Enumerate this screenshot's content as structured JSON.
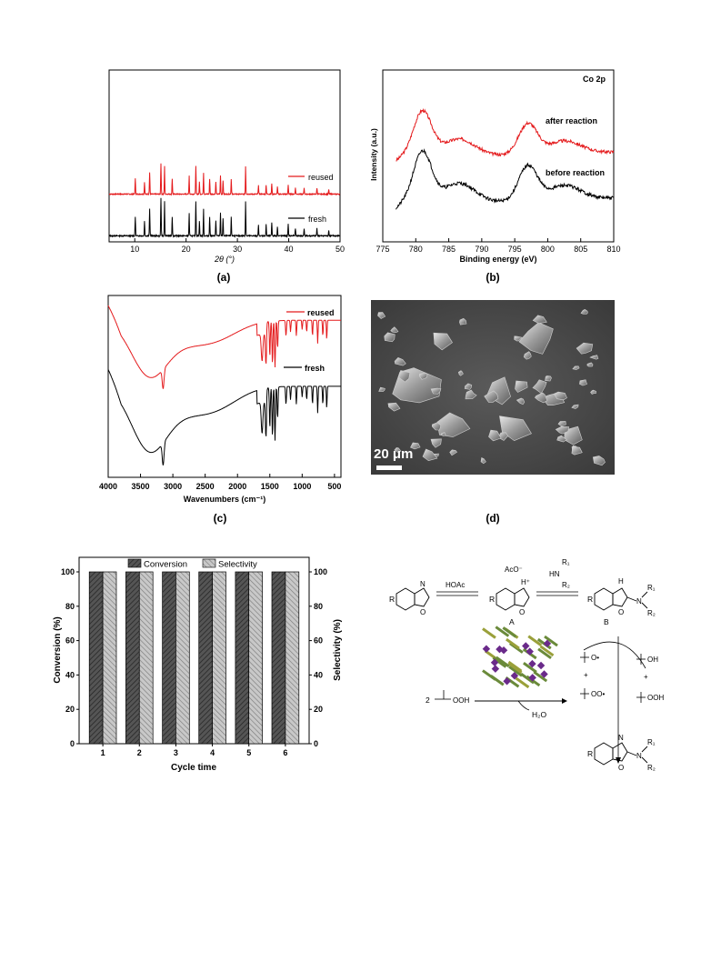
{
  "panels": {
    "a": {
      "caption": "(a)",
      "xlabel": "2θ (°)",
      "xlim": [
        5,
        50
      ],
      "xticks": [
        "10",
        "20",
        "30",
        "40",
        "50"
      ],
      "series": [
        {
          "name": "reused",
          "color": "#e41a1c"
        },
        {
          "name": "fresh",
          "color": "#000000"
        }
      ]
    },
    "b": {
      "caption": "(b)",
      "title": "Co 2p",
      "xlabel": "Binding energy (eV)",
      "ylabel": "Intensity (a.u.)",
      "xlim": [
        775,
        810
      ],
      "xticks": [
        "775",
        "780",
        "785",
        "790",
        "795",
        "800",
        "805",
        "810"
      ],
      "series": [
        {
          "name": "after reaction",
          "color": "#e41a1c"
        },
        {
          "name": "before reaction",
          "color": "#000000"
        }
      ]
    },
    "c": {
      "caption": "(c)",
      "xlabel": "Wavenumbers (cm⁻¹)",
      "xlim": [
        4000,
        400
      ],
      "xticks": [
        "4000",
        "3500",
        "3000",
        "2500",
        "2000",
        "1500",
        "1000",
        "500"
      ],
      "series": [
        {
          "name": "reused",
          "color": "#e41a1c"
        },
        {
          "name": "fresh",
          "color": "#000000"
        }
      ]
    },
    "d": {
      "caption": "(d)",
      "scale_label": "20 μm"
    }
  },
  "chart_data": {
    "type": "bar",
    "categories": [
      "1",
      "2",
      "3",
      "4",
      "5",
      "6"
    ],
    "series": [
      {
        "name": "Conversion",
        "values": [
          100,
          100,
          100,
          100,
          100,
          100
        ]
      },
      {
        "name": "Selectivity",
        "values": [
          100,
          100,
          100,
          100,
          100,
          100
        ]
      }
    ],
    "xlabel": "Cycle time",
    "ylabel": "Conversion (%)",
    "ylabel_right": "Selectivity (%)",
    "ylim": [
      0,
      100
    ],
    "yticks": [
      "0",
      "20",
      "40",
      "60",
      "80",
      "100"
    ],
    "legend_position": "top"
  },
  "scheme": {
    "r": "R",
    "hoac": "HOAc",
    "aco": "AcO⁻",
    "n": "N",
    "nh": "N",
    "o": "O",
    "h_plus": "H⁺",
    "h": "H",
    "hn": "HN",
    "r1": "R₁",
    "r2": "R₂",
    "label_a": "A",
    "label_b": "B",
    "tbhp_coef": "2",
    "tbhp": "OOH",
    "water": "H₂O",
    "radical_o": "O•",
    "radical_oo": "OO•",
    "tbuoh": "OH",
    "plus": "+",
    "tbooh": "OOH"
  }
}
